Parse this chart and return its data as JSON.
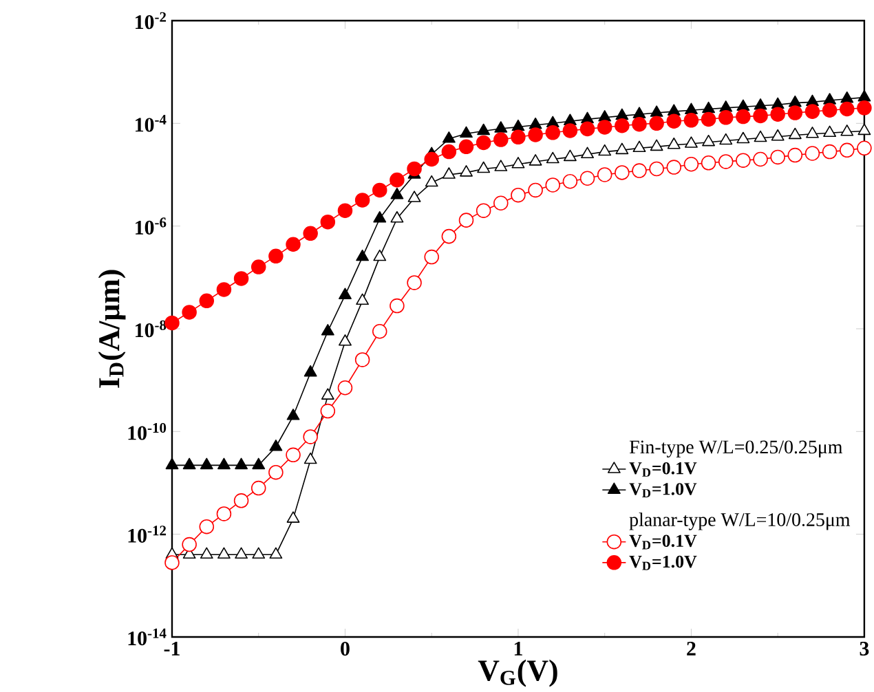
{
  "chart_data": {
    "type": "line",
    "xlabel": "V$_{G}$(V)",
    "ylabel": "I$_{D}$(A/μm)",
    "annotations": [
      "Fin-type W/L=0.25/0.25μm",
      "planar-type W/L=10/0.25μm"
    ],
    "x": [
      -1,
      -0.9,
      -0.8,
      -0.7,
      -0.6,
      -0.5,
      -0.4,
      -0.3,
      -0.2,
      -0.1,
      0,
      0.1,
      0.2,
      0.3,
      0.4,
      0.5,
      0.6,
      0.7,
      0.8,
      0.9,
      1,
      1.1,
      1.2,
      1.3,
      1.4,
      1.5,
      1.6,
      1.7,
      1.8,
      1.9,
      2,
      2.1,
      2.2,
      2.3,
      2.4,
      2.5,
      2.6,
      2.7,
      2.8,
      2.9,
      3
    ],
    "series": [
      {
        "name": "V$_{D}$=0.1V",
        "color": "#000000",
        "marker": "triangle",
        "values": [
          4e-13,
          4e-13,
          4e-13,
          4e-13,
          4e-13,
          4e-13,
          4e-13,
          2e-12,
          2.8e-11,
          5e-10,
          5.6e-09,
          3.5e-08,
          2.5e-07,
          1.4e-06,
          3.5e-06,
          7e-06,
          1e-05,
          1.1e-05,
          1.3e-05,
          1.4e-05,
          1.6e-05,
          1.8e-05,
          2e-05,
          2.2e-05,
          2.5e-05,
          2.8e-05,
          3e-05,
          3.3e-05,
          3.5e-05,
          3.8e-05,
          4e-05,
          4.3e-05,
          4.6e-05,
          4.9e-05,
          5.2e-05,
          5.5e-05,
          5.9e-05,
          6.2e-05,
          6.5e-05,
          6.8e-05,
          7.1e-05
        ]
      },
      {
        "name": "V$_{D}$=1.0V",
        "color": "#000000",
        "marker": "triangle",
        "values": [
          2.2e-11,
          2.2e-11,
          2.2e-11,
          2.2e-11,
          2.2e-11,
          2.2e-11,
          5e-11,
          2e-10,
          1.4e-09,
          8.9e-09,
          4.5e-08,
          2.5e-07,
          1.4e-06,
          4e-06,
          1e-05,
          2.5e-05,
          5e-05,
          6.3e-05,
          7.1e-05,
          7.9e-05,
          8.5e-05,
          9.3e-05,
          0.0001,
          0.00011,
          0.00012,
          0.00013,
          0.00014,
          0.00015,
          0.00016,
          0.00017,
          0.00018,
          0.00019,
          0.0002,
          0.00021,
          0.00022,
          0.00023,
          0.00025,
          0.00026,
          0.00028,
          0.0003,
          0.00032
        ]
      },
      {
        "name": "V$_{D}$=0.1V",
        "color": "#ff0000",
        "marker": "circle",
        "values": [
          2.8e-13,
          6.3e-13,
          1.4e-12,
          2.5e-12,
          4.5e-12,
          7.9e-12,
          1.6e-11,
          3.5e-11,
          7.9e-11,
          2.5e-10,
          7.1e-10,
          2.5e-09,
          8.9e-09,
          2.8e-08,
          7.9e-08,
          2.5e-07,
          6.3e-07,
          1.3e-06,
          2e-06,
          2.8e-06,
          4e-06,
          5e-06,
          6.3e-06,
          7.4e-06,
          8.5e-06,
          1e-05,
          1.1e-05,
          1.2e-05,
          1.3e-05,
          1.4e-05,
          1.6e-05,
          1.7e-05,
          1.8e-05,
          1.9e-05,
          2e-05,
          2.2e-05,
          2.4e-05,
          2.6e-05,
          2.8e-05,
          3e-05,
          3.3e-05
        ]
      },
      {
        "name": "V$_{D}$=1.0V",
        "color": "#ff0000",
        "marker": "circle",
        "values": [
          1.3e-08,
          2.1e-08,
          3.5e-08,
          5.8e-08,
          9.5e-08,
          1.6e-07,
          2.6e-07,
          4.4e-07,
          7.2e-07,
          1.2e-06,
          2e-06,
          3.2e-06,
          5e-06,
          7.9e-06,
          1.3e-05,
          2e-05,
          2.8e-05,
          3.5e-05,
          4.2e-05,
          4.8e-05,
          5.4e-05,
          6e-05,
          6.6e-05,
          7.2e-05,
          7.8e-05,
          8.4e-05,
          9e-05,
          9.6e-05,
          0.0001,
          0.00011,
          0.000115,
          0.00012,
          0.00013,
          0.000135,
          0.00014,
          0.00015,
          0.00016,
          0.00017,
          0.00018,
          0.00019,
          0.0002
        ]
      }
    ],
    "log": "y",
    "legend": "right",
    "xlim": [
      -1,
      3
    ],
    "xticks": [
      -1,
      0,
      1,
      2,
      3
    ],
    "ylim": [
      1e-14,
      0.01
    ],
    "yticks": [
      {
        "value": 0.01,
        "label": "10$^{-2}$"
      },
      {
        "value": 0.0001,
        "label": "10$^{-4}$"
      },
      {
        "value": 1e-06,
        "label": "10$^{-6}$"
      },
      {
        "value": 1e-08,
        "label": "10$^{-8}$"
      },
      {
        "value": 1e-10,
        "label": "10$^{-10}$"
      },
      {
        "value": 1e-12,
        "label": "10$^{-12}$"
      },
      {
        "value": 1e-14,
        "label": "10$^{-14}$"
      }
    ]
  }
}
